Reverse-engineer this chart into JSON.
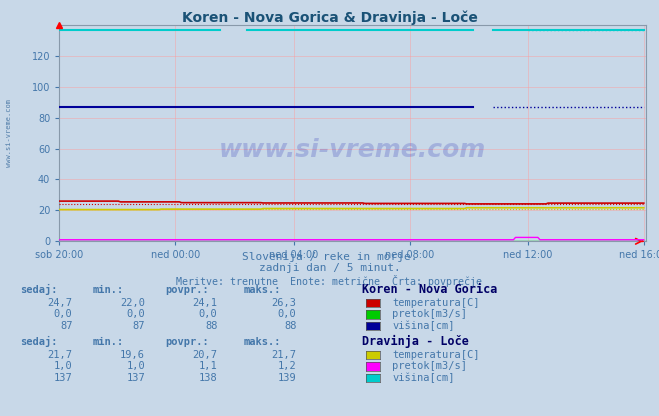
{
  "title": "Koren - Nova Gorica & Dravinja - Loče",
  "title_color": "#1a5276",
  "bg_color": "#c8d8e8",
  "plot_bg_color": "#c8d8e8",
  "grid_color": "#ff9999",
  "grid_color2": "#aaaacc",
  "xlabel_ticks": [
    "sob 20:00",
    "ned 00:00",
    "ned 04:00",
    "ned 08:00",
    "ned 12:00",
    "ned 16:00"
  ],
  "ylim": [
    0,
    140
  ],
  "yticks": [
    0,
    20,
    40,
    60,
    80,
    100,
    120
  ],
  "n_points": 288,
  "colors": {
    "koren_temp": "#cc0000",
    "koren_pretok": "#00bb00",
    "koren_visina": "#000099",
    "dravinja_temp": "#cccc00",
    "dravinja_pretok": "#ff00ff",
    "dravinja_visina": "#00cccc"
  },
  "text_color": "#4477aa",
  "subtitle1": "Slovenija / reke in morje.",
  "subtitle2": "zadnji dan / 5 minut.",
  "subtitle3": "Meritve: trenutne  Enote: metrične  Črta: povprečje",
  "watermark": "www.si-vreme.com",
  "table_headers": [
    "sedaj:",
    "min.:",
    "povpr.:",
    "maks.:"
  ],
  "koren_label": "Koren - Nova Gorica",
  "dravinja_label": "Dravinja - Loče",
  "koren_rows": [
    {
      "sedaj": "24,7",
      "min": "22,0",
      "povpr": "24,1",
      "maks": "26,3",
      "legend": "temperatura[C]",
      "color": "#cc0000"
    },
    {
      "sedaj": "0,0",
      "min": "0,0",
      "povpr": "0,0",
      "maks": "0,0",
      "legend": "pretok[m3/s]",
      "color": "#00cc00"
    },
    {
      "sedaj": "87",
      "min": "87",
      "povpr": "88",
      "maks": "88",
      "legend": "višina[cm]",
      "color": "#000099"
    }
  ],
  "dravinja_rows": [
    {
      "sedaj": "21,7",
      "min": "19,6",
      "povpr": "20,7",
      "maks": "21,7",
      "legend": "temperatura[C]",
      "color": "#cccc00"
    },
    {
      "sedaj": "1,0",
      "min": "1,0",
      "povpr": "1,1",
      "maks": "1,2",
      "legend": "pretok[m3/s]",
      "color": "#ff00ff"
    },
    {
      "sedaj": "137",
      "min": "137",
      "povpr": "138",
      "maks": "139",
      "legend": "višina[cm]",
      "color": "#00cccc"
    }
  ],
  "left_margin_text": "www.si-vreme.com"
}
